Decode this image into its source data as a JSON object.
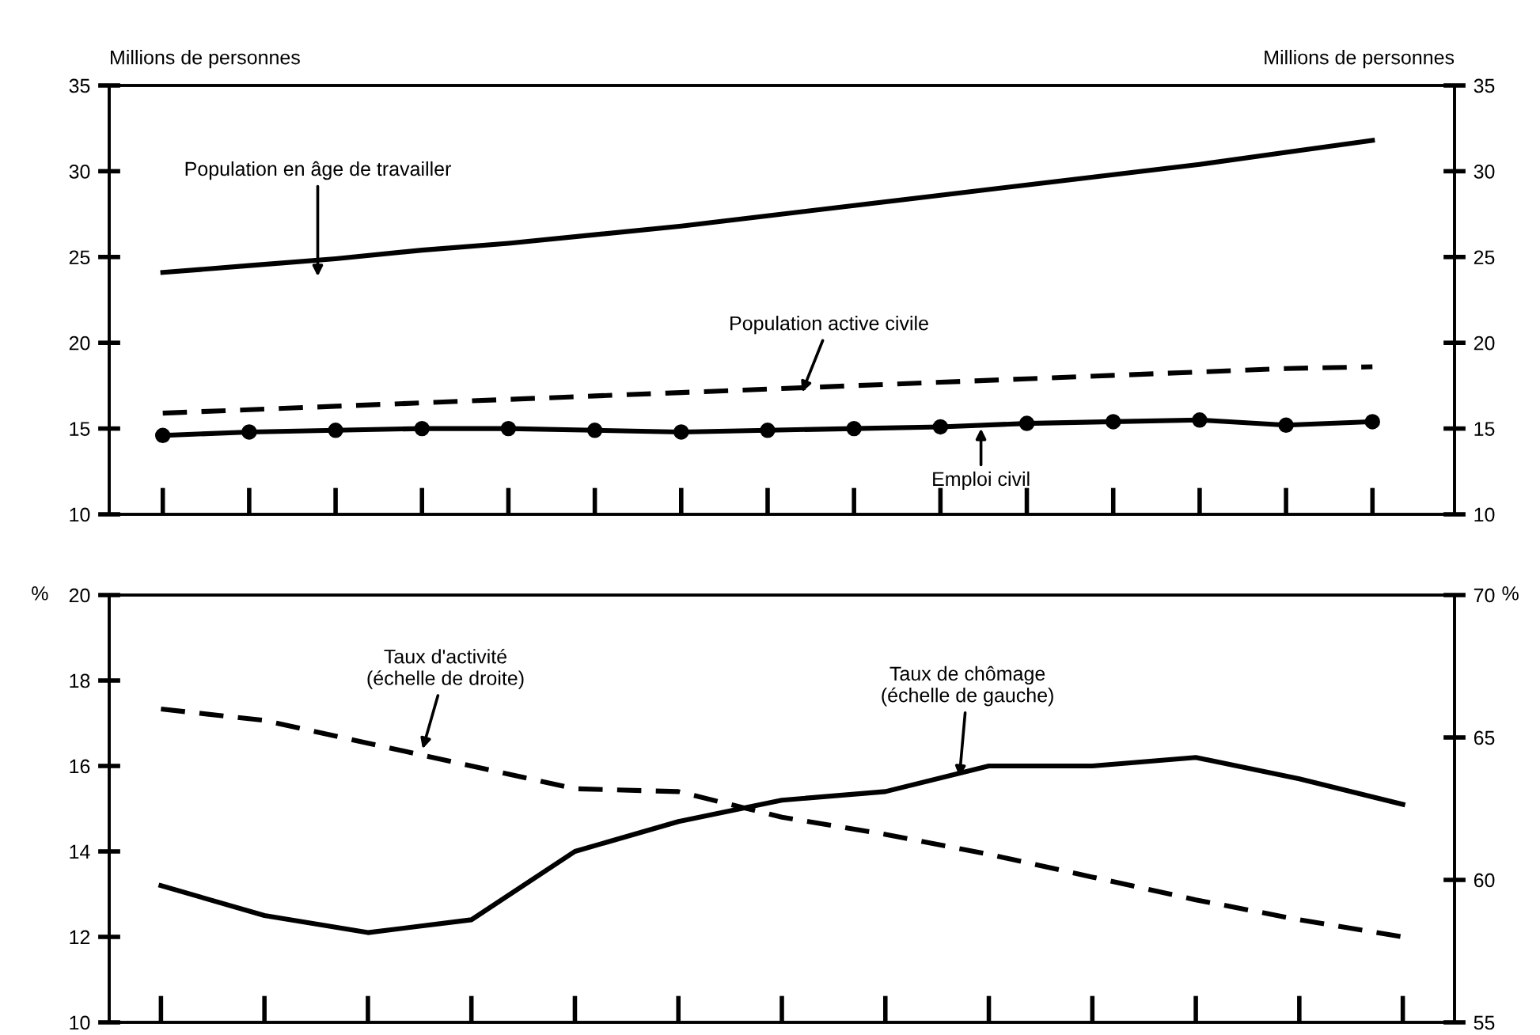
{
  "chart_data": [
    {
      "type": "line",
      "ylabel": "Millions de personnes",
      "y2label": "Millions de personnes",
      "categories": [
        null,
        null,
        null,
        null,
        null,
        null,
        null,
        null,
        null,
        null,
        null,
        null,
        null,
        null,
        null
      ],
      "ylim": [
        10,
        35
      ],
      "yticks": [
        10,
        15,
        20,
        25,
        30,
        35
      ],
      "y2lim": [
        10,
        35
      ],
      "y2ticks": [
        10,
        15,
        20,
        25,
        30,
        35
      ],
      "series": [
        {
          "color": "#000000",
          "line_style": "solid",
          "marker": "none",
          "values": [
            24.1,
            24.5,
            24.9,
            25.4,
            25.8,
            26.3,
            26.8,
            27.4,
            28.0,
            28.6,
            29.2,
            29.8,
            30.4,
            31.1,
            31.8
          ]
        },
        {
          "color": "#000000",
          "line_style": "dashed",
          "marker": "none",
          "values": [
            15.9,
            16.1,
            16.3,
            16.5,
            16.7,
            16.9,
            17.1,
            17.3,
            17.5,
            17.7,
            17.9,
            18.1,
            18.3,
            18.5,
            18.6
          ]
        },
        {
          "color": "#000000",
          "line_style": "solid",
          "marker": "circle",
          "values": [
            14.6,
            14.8,
            14.9,
            15.0,
            15.0,
            14.9,
            14.8,
            14.9,
            15.0,
            15.1,
            15.3,
            15.4,
            15.5,
            15.2,
            15.4
          ]
        }
      ],
      "annotations": [
        "Population en âge de travailler",
        "Population active civile",
        "Emploi civil"
      ]
    },
    {
      "type": "line",
      "ylabel": "%",
      "y2label": "%",
      "categories": [
        null,
        null,
        null,
        null,
        null,
        null,
        null,
        null,
        null,
        null,
        null,
        null,
        null
      ],
      "ylim": [
        10,
        20
      ],
      "yticks": [
        10,
        12,
        14,
        16,
        18,
        20
      ],
      "y2lim": [
        55,
        70
      ],
      "y2ticks": [
        55,
        60,
        65,
        70
      ],
      "series": [
        {
          "color": "#000000",
          "line_style": "solid",
          "marker": "none",
          "axis": "y",
          "values": [
            13.2,
            12.5,
            12.1,
            12.4,
            14.0,
            14.7,
            15.2,
            15.4,
            16.0,
            16.0,
            16.2,
            15.7,
            15.1
          ]
        },
        {
          "color": "#000000",
          "line_style": "dashed",
          "marker": "none",
          "axis": "y2",
          "values": [
            66.0,
            65.6,
            64.8,
            64.0,
            63.2,
            63.1,
            62.2,
            61.6,
            60.9,
            60.1,
            59.3,
            58.6,
            58.0
          ]
        }
      ],
      "annotations": [
        "Taux d'activité\n(échelle de droite)",
        "Taux de chômage\n(échelle de gauche)"
      ]
    }
  ]
}
